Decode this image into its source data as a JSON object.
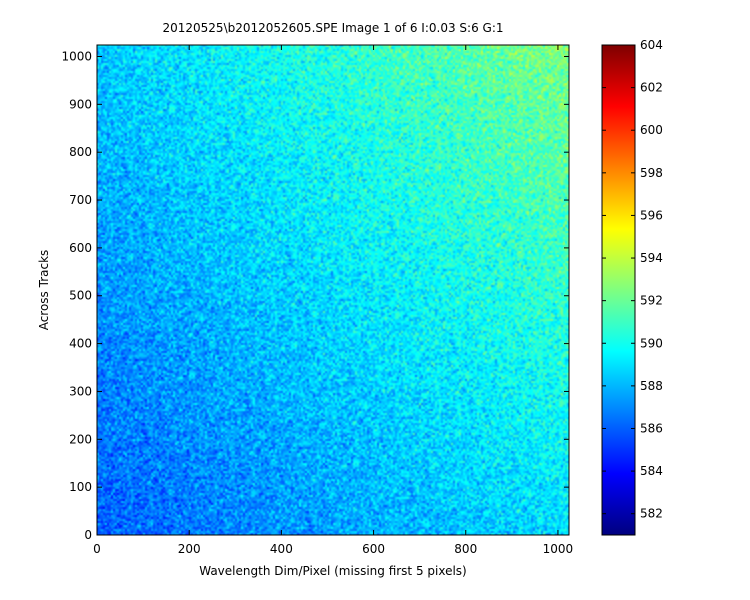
{
  "chart_data": {
    "type": "heatmap",
    "title": "20120525\\b2012052605.SPE  Image 1 of 6  I:0.03  S:6  G:1",
    "xlabel": "Wavelength Dim/Pixel (missing first 5 pixels)",
    "ylabel": "Across Tracks",
    "xlim": [
      0,
      1024
    ],
    "ylim": [
      0,
      1024
    ],
    "x_ticks": [
      0,
      200,
      400,
      600,
      800,
      1000
    ],
    "y_ticks": [
      0,
      100,
      200,
      300,
      400,
      500,
      600,
      700,
      800,
      900,
      1000
    ],
    "colorbar": {
      "range": [
        581,
        604
      ],
      "ticks": [
        582,
        584,
        586,
        588,
        590,
        592,
        594,
        596,
        598,
        600,
        602,
        604
      ],
      "colormap": "jet"
    },
    "value_trend": {
      "description": "intensity field with pixel noise",
      "corner_values": {
        "x0_y0": 586.0,
        "x1024_y0": 589.0,
        "x0_y1024": 588.5,
        "x1024_y1024": 592.5
      },
      "noise_amplitude": 2.0
    }
  }
}
